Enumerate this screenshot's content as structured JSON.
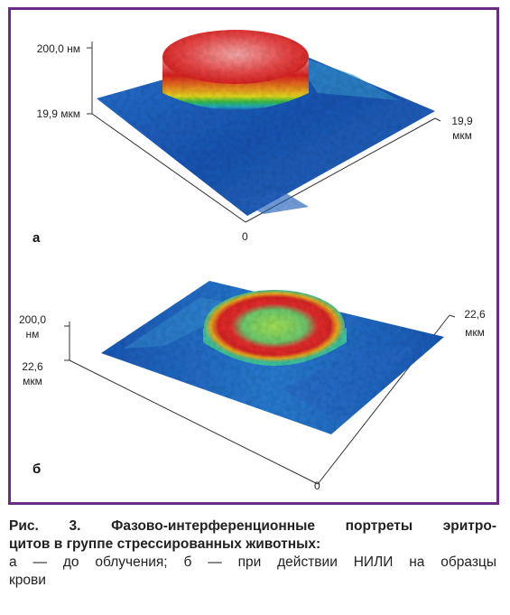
{
  "figure": {
    "panel_a": {
      "letter": "а",
      "z_max": "200,0 нм",
      "y_extent": "19,9 мкм",
      "x_extent_value": "19,9",
      "x_extent_unit": "мкм",
      "origin": "0"
    },
    "panel_b": {
      "letter": "б",
      "z_max_value": "200,0",
      "z_max_unit": "нм",
      "y_extent_value": "22,6",
      "y_extent_unit": "мкм",
      "x_extent_value": "22,6",
      "x_extent_unit": "мкм",
      "origin": "0"
    },
    "colors": {
      "frame": "#6a2c86",
      "surface_low": "#1f5fc0",
      "surface_mid": "#3fc2a0",
      "surface_high": "#e02020",
      "peak": "#ff8080"
    }
  },
  "caption": {
    "title_line1": "Рис. 3. Фазово-интерференционные портреты эритро-",
    "title_line2": "цитов в группе стрессированных животных:",
    "desc_line1": "а — до облучения; б — при действии НИЛИ на образцы",
    "desc_line2": "крови"
  }
}
